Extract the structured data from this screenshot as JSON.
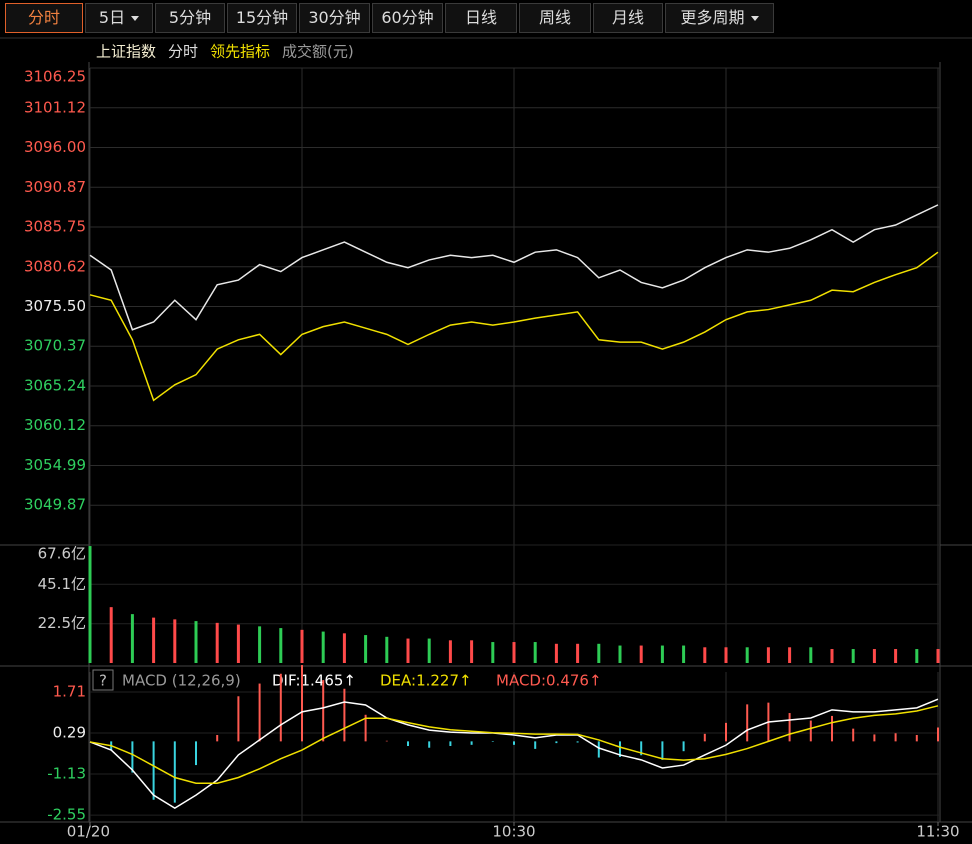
{
  "toolbar": {
    "tabs": [
      "分时",
      "5日",
      "5分钟",
      "15分钟",
      "30分钟",
      "60分钟",
      "日线",
      "周线",
      "月线",
      "更多周期"
    ],
    "active": 0,
    "dropdown": [
      1,
      9
    ]
  },
  "time_axis": {
    "x": [
      0,
      3,
      6,
      9,
      12,
      15,
      18,
      21,
      24,
      27,
      30,
      33,
      36,
      39,
      42,
      45,
      48,
      51,
      54,
      57,
      60,
      63,
      66,
      69,
      72,
      75,
      78,
      81,
      84,
      87,
      90,
      93,
      96,
      99,
      102,
      105,
      108,
      111,
      114,
      117,
      120
    ],
    "xlim": [
      0,
      120
    ],
    "xticks": [
      {
        "value": 0,
        "label": "01/20"
      },
      {
        "value": 60,
        "label": "10:30"
      },
      {
        "value": 120,
        "label": "11:30"
      }
    ],
    "xgrid": [
      0,
      30,
      60,
      90,
      120
    ]
  },
  "chart_data": [
    {
      "type": "line",
      "legend": [
        {
          "text": "上证指数",
          "color": "#f2ecd0"
        },
        {
          "text": "分时",
          "color": "#dddddd"
        },
        {
          "text": "领先指标",
          "color": "#f0e000"
        },
        {
          "text": "成交额(元)",
          "color": "#9a9a9a"
        }
      ],
      "ylim": [
        3044.74,
        3106.25
      ],
      "yticks": [
        3106.25,
        3101.12,
        {
          "value": 3096,
          "label": "3096.00"
        },
        3090.87,
        3085.75,
        3080.62,
        {
          "value": 3075.5,
          "label": "3075.50"
        },
        3070.37,
        3065.24,
        3060.12,
        3054.99,
        3049.87
      ],
      "ytick_colors": [
        "#ff5a4e",
        "#ff5a4e",
        "#ff5a4e",
        "#ff5a4e",
        "#ff5a4e",
        "#ff5a4e",
        "#eeeeee",
        "#2fd060",
        "#2fd060",
        "#2fd060",
        "#2fd060",
        "#2fd060"
      ],
      "grid": true,
      "series": [
        {
          "color": "#e8e8e8",
          "values": [
            3082.1,
            3080.2,
            3072.5,
            3073.5,
            3076.3,
            3073.8,
            3078.3,
            3078.9,
            3080.9,
            3080.0,
            3081.8,
            3082.8,
            3083.8,
            3082.5,
            3081.2,
            3080.5,
            3081.5,
            3082.1,
            3081.8,
            3082.1,
            3081.2,
            3082.5,
            3082.8,
            3081.8,
            3079.2,
            3080.2,
            3078.6,
            3077.9,
            3078.9,
            3080.5,
            3081.8,
            3082.8,
            3082.5,
            3083.0,
            3084.1,
            3085.4,
            3083.8,
            3085.4,
            3086.0,
            3087.3,
            3088.6
          ]
        },
        {
          "color": "#f0e000",
          "values": [
            3077.0,
            3076.3,
            3071.2,
            3063.4,
            3065.4,
            3066.7,
            3070.0,
            3071.2,
            3071.9,
            3069.3,
            3071.9,
            3072.9,
            3073.5,
            3072.7,
            3071.9,
            3070.6,
            3071.9,
            3073.1,
            3073.5,
            3073.1,
            3073.5,
            3074.0,
            3074.4,
            3074.8,
            3071.2,
            3070.9,
            3070.9,
            3070.0,
            3070.9,
            3072.2,
            3073.8,
            3074.8,
            3075.1,
            3075.7,
            3076.3,
            3077.6,
            3077.4,
            3078.6,
            3079.6,
            3080.5,
            3082.5
          ]
        }
      ]
    },
    {
      "type": "bar",
      "ylim": [
        0,
        67.6
      ],
      "yticks": [
        {
          "value": 67.6,
          "label": "67.6亿"
        },
        {
          "value": 45.1,
          "label": "45.1亿"
        },
        {
          "value": 22.5,
          "label": "22.5亿"
        }
      ],
      "ytick_color": "#cccccc",
      "values": [
        67,
        32,
        28,
        26,
        25,
        24,
        23,
        22,
        21,
        20,
        19,
        18,
        17,
        16,
        15,
        14,
        14,
        13,
        13,
        12,
        12,
        12,
        11,
        11,
        11,
        10,
        10,
        10,
        10,
        9,
        9,
        9,
        9,
        9,
        9,
        8,
        8,
        8,
        8,
        8,
        8
      ],
      "colors": [
        "#2ecc55",
        "#ff4a4a",
        "#2ecc55",
        "#ff4a4a",
        "#ff4a4a",
        "#2ecc55",
        "#ff4a4a",
        "#ff4a4a",
        "#2ecc55",
        "#2ecc55",
        "#ff4a4a",
        "#2ecc55",
        "#ff4a4a",
        "#2ecc55",
        "#2ecc55",
        "#ff4a4a",
        "#2ecc55",
        "#ff4a4a",
        "#ff4a4a",
        "#2ecc55",
        "#ff4a4a",
        "#2ecc55",
        "#ff4a4a",
        "#ff4a4a",
        "#2ecc55",
        "#2ecc55",
        "#ff4a4a",
        "#2ecc55",
        "#2ecc55",
        "#ff4a4a",
        "#ff4a4a",
        "#2ecc55",
        "#ff4a4a",
        "#ff4a4a",
        "#2ecc55",
        "#ff4a4a",
        "#2ecc55",
        "#ff4a4a",
        "#ff4a4a",
        "#2ecc55",
        "#ff4a4a"
      ]
    },
    {
      "type": "macd",
      "help": "?",
      "title": "MACD (12,26,9)",
      "ylim": [
        -2.79,
        2.4
      ],
      "yticks": [
        1.71,
        0.29,
        -1.13,
        -2.55
      ],
      "ytick_colors": [
        "#ff5a4e",
        "#eeeeee",
        "#2fd060",
        "#2fd060"
      ],
      "up_color": "#ff5a50",
      "down_color": "#3ad4e0",
      "series": [
        {
          "name": "DIF:1.465↑",
          "color": "#ffffff",
          "values": [
            -0.02,
            -0.3,
            -0.99,
            -1.86,
            -2.31,
            -1.86,
            -1.34,
            -0.47,
            0.05,
            0.57,
            1.02,
            1.16,
            1.36,
            1.26,
            0.81,
            0.57,
            0.39,
            0.32,
            0.29,
            0.29,
            0.22,
            0.12,
            0.22,
            0.22,
            -0.23,
            -0.47,
            -0.64,
            -0.92,
            -0.82,
            -0.47,
            -0.13,
            0.39,
            0.67,
            0.74,
            0.81,
            1.09,
            1.02,
            1.02,
            1.09,
            1.16,
            1.46
          ]
        },
        {
          "name": "DEA:1.227↑",
          "color": "#f0e000",
          "values": [
            -0.02,
            -0.15,
            -0.45,
            -0.85,
            -1.25,
            -1.45,
            -1.45,
            -1.25,
            -0.95,
            -0.6,
            -0.3,
            0.1,
            0.45,
            0.8,
            0.8,
            0.65,
            0.5,
            0.4,
            0.35,
            0.3,
            0.28,
            0.25,
            0.25,
            0.24,
            0.05,
            -0.2,
            -0.4,
            -0.6,
            -0.65,
            -0.6,
            -0.45,
            -0.25,
            0,
            0.25,
            0.45,
            0.65,
            0.8,
            0.9,
            0.95,
            1.05,
            1.23
          ]
        }
      ],
      "histogram": {
        "name": "MACD:0.476↑",
        "color": "#ff5a50",
        "values": [
          0,
          -0.3,
          -1.08,
          -2.02,
          -2.12,
          -0.82,
          0.22,
          1.56,
          2.0,
          2.34,
          2.64,
          2.12,
          1.82,
          0.92,
          0.02,
          -0.16,
          -0.22,
          -0.16,
          -0.12,
          -0.02,
          -0.12,
          -0.26,
          -0.06,
          -0.04,
          -0.56,
          -0.54,
          -0.48,
          -0.64,
          -0.34,
          0.26,
          0.64,
          1.28,
          1.34,
          0.98,
          0.72,
          0.88,
          0.44,
          0.24,
          0.28,
          0.22,
          0.48
        ]
      }
    }
  ]
}
